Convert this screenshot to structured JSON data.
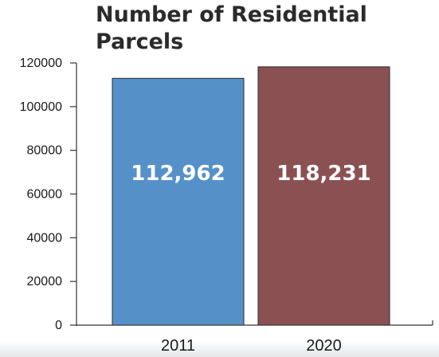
{
  "chart_data": {
    "type": "bar",
    "title": "Number of Residential Parcels",
    "categories": [
      "2011",
      "2020"
    ],
    "values": [
      112962,
      118231
    ],
    "data_labels": [
      "112,962",
      "118,231"
    ],
    "colors": [
      "#5591c8",
      "#8b5152"
    ],
    "ylim": [
      0,
      120000
    ],
    "yticks": [
      0,
      20000,
      40000,
      60000,
      80000,
      100000,
      120000
    ],
    "xlabel": "",
    "ylabel": "",
    "grid": false,
    "legend": "none"
  }
}
